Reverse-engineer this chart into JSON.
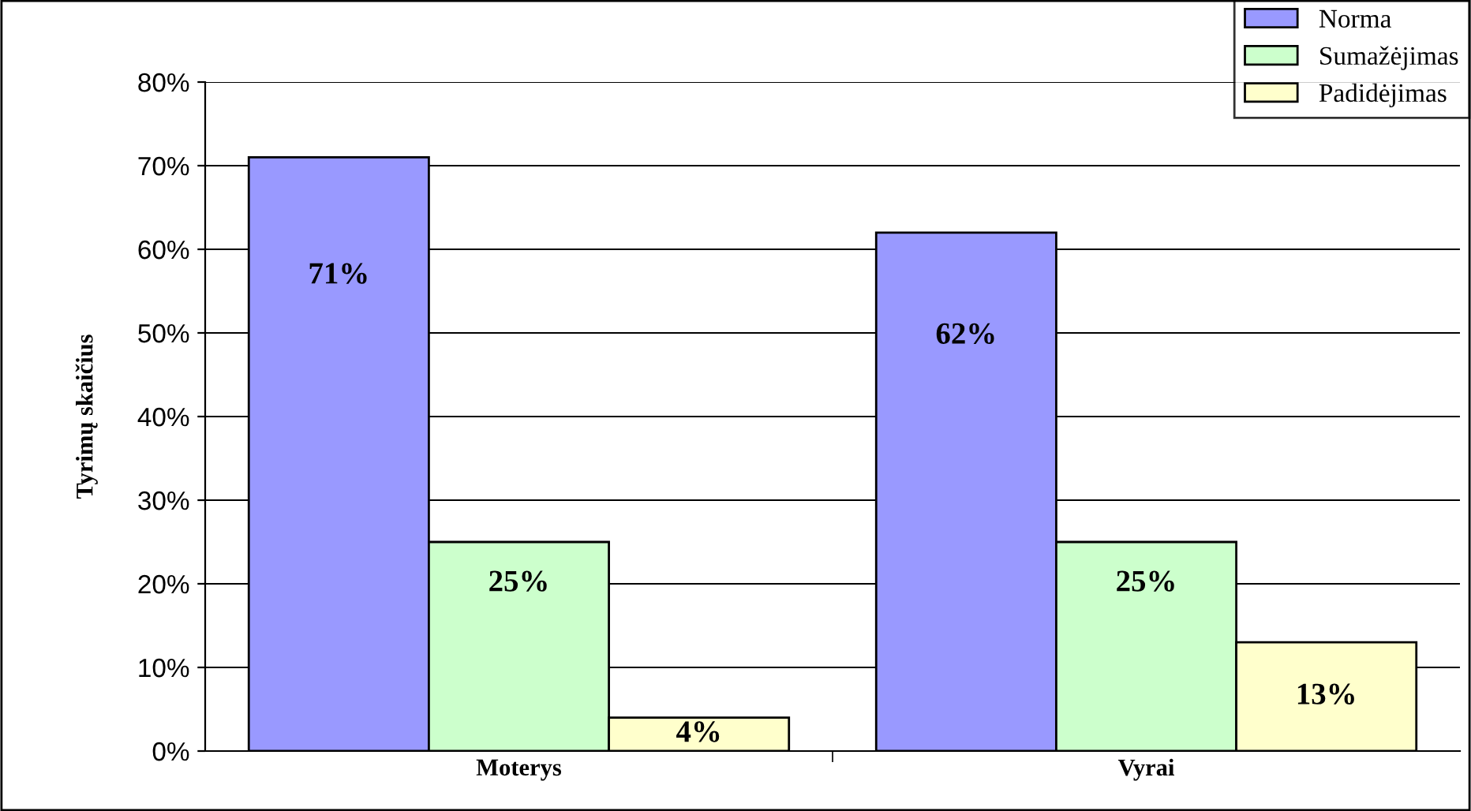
{
  "chart_data": {
    "type": "bar",
    "ylabel": "Tyrimų skaičius",
    "categories": [
      "Moterys",
      "Vyrai"
    ],
    "series": [
      {
        "name": "Norma",
        "color": "#9999ff",
        "values": [
          71,
          62
        ],
        "value_labels": [
          "71%",
          "62%"
        ]
      },
      {
        "name": "Sumažėjimas",
        "color": "#ccffcc",
        "values": [
          25,
          25
        ],
        "value_labels": [
          "25%",
          "25%"
        ]
      },
      {
        "name": "Padidėjimas",
        "color": "#ffffcc",
        "values": [
          4,
          13
        ],
        "value_labels": [
          "4%",
          "13%"
        ]
      }
    ],
    "ylim": [
      0,
      80
    ],
    "yticks": [
      {
        "value": 0,
        "label": "0%"
      },
      {
        "value": 10,
        "label": "10%"
      },
      {
        "value": 20,
        "label": "20%"
      },
      {
        "value": 30,
        "label": "30%"
      },
      {
        "value": 40,
        "label": "40%"
      },
      {
        "value": 50,
        "label": "50%"
      },
      {
        "value": 60,
        "label": "60%"
      },
      {
        "value": 70,
        "label": "70%"
      },
      {
        "value": 80,
        "label": "80%"
      }
    ],
    "grid": "y",
    "legend": "top right"
  }
}
